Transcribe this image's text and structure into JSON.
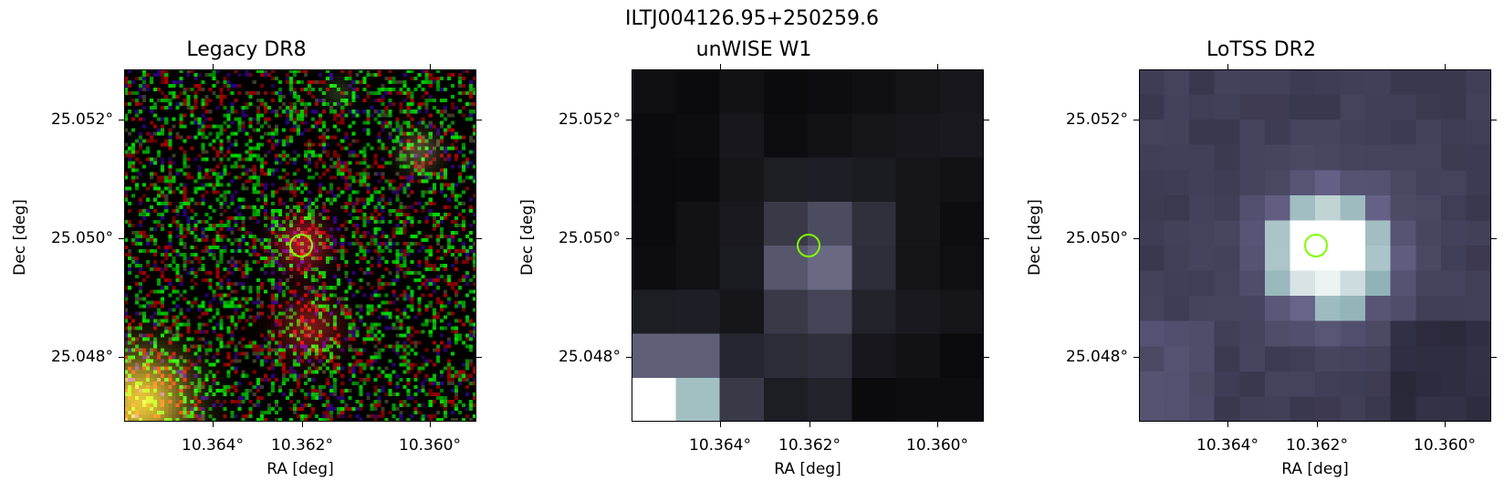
{
  "figure": {
    "title": "ILTJ004126.95+250259.6"
  },
  "panels": [
    {
      "id": "legacy",
      "title": "Legacy DR8",
      "kind": "rgb-noise",
      "accent": "#c83c3c"
    },
    {
      "id": "unwise",
      "title": "unWISE W1",
      "kind": "gray-blocks",
      "accent": "#5a5a78"
    },
    {
      "id": "lotss",
      "title": "LoTSS DR2",
      "kind": "radio",
      "accent": "#a8c8c8"
    }
  ],
  "axes": {
    "xlabel": "RA [deg]",
    "ylabel": "Dec [deg]",
    "xticks": [
      "10.364°",
      "10.362°",
      "10.360°"
    ],
    "yticks": [
      "25.052°",
      "25.050°",
      "25.048°"
    ]
  },
  "marker": {
    "color": "#7fff00"
  }
}
